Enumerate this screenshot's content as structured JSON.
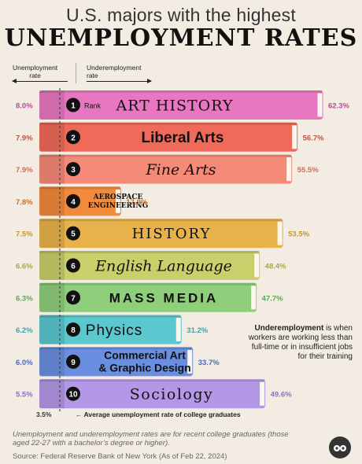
{
  "header": {
    "title_line1": "U.S. majors with the highest",
    "title_line2": "UNEMPLOYMENT RATES",
    "col_unemployment": "Unemployment\nrate",
    "col_underemployment": "Underemployment\nrate"
  },
  "note": {
    "bold": "Underemployment",
    "text": " is when workers are working less than full-time or in insufficient jobs for their training"
  },
  "average": {
    "value_label": "3.5%",
    "label": "Average unemployment rate of college graduates"
  },
  "footer": {
    "note": "Unemployment and underemployment rates are for recent college graduates (those aged 22-27 with a bachelor’s degree or higher).",
    "source": "Source: Federal Reserve Bank of New York (As of Feb 22, 2024)"
  },
  "rank_label": "Rank",
  "chart_data": {
    "type": "bar",
    "title": "U.S. majors with the highest UNEMPLOYMENT RATES",
    "categories": [
      "ART HISTORY",
      "Liberal Arts",
      "Fine Arts",
      "AEROSPACE ENGINEERING",
      "HISTORY",
      "English Language",
      "MASS MEDIA",
      "Physics",
      "Commercial Art & Graphic Design",
      "Sociology"
    ],
    "ranks": [
      1,
      2,
      3,
      4,
      5,
      6,
      7,
      8,
      9,
      10
    ],
    "series": [
      {
        "name": "Unemployment rate",
        "values": [
          8.0,
          7.9,
          7.9,
          7.8,
          7.5,
          6.6,
          6.3,
          6.2,
          6.0,
          5.5
        ],
        "labels": [
          "8.0%",
          "7.9%",
          "7.9%",
          "7.8%",
          "7.5%",
          "6.6%",
          "6.3%",
          "6.2%",
          "6.0%",
          "5.5%"
        ]
      },
      {
        "name": "Underemployment rate",
        "values": [
          62.3,
          56.7,
          55.5,
          17.9,
          53.5,
          48.4,
          47.7,
          31.2,
          33.7,
          49.6
        ],
        "labels": [
          "62.3%",
          "56.7%",
          "55.5%",
          "17.9%",
          "53.5%",
          "48.4%",
          "47.7%",
          "31.2%",
          "33.7%",
          "49.6%"
        ]
      }
    ],
    "reference_line": {
      "value": 3.5,
      "label": "Average unemployment rate of college graduates"
    },
    "colors": [
      "#e777c0",
      "#f06a5a",
      "#f58a78",
      "#f28a3c",
      "#e8b24a",
      "#c9cf6a",
      "#8fce7a",
      "#5bc7cf",
      "#6a8ee0",
      "#b497e6"
    ],
    "label_colors": [
      "#b24e95",
      "#c4503f",
      "#d06c58",
      "#d06a2c",
      "#c49633",
      "#a5ab4c",
      "#5ea857",
      "#3ea2aa",
      "#4a6bc2",
      "#8f70c4"
    ]
  }
}
